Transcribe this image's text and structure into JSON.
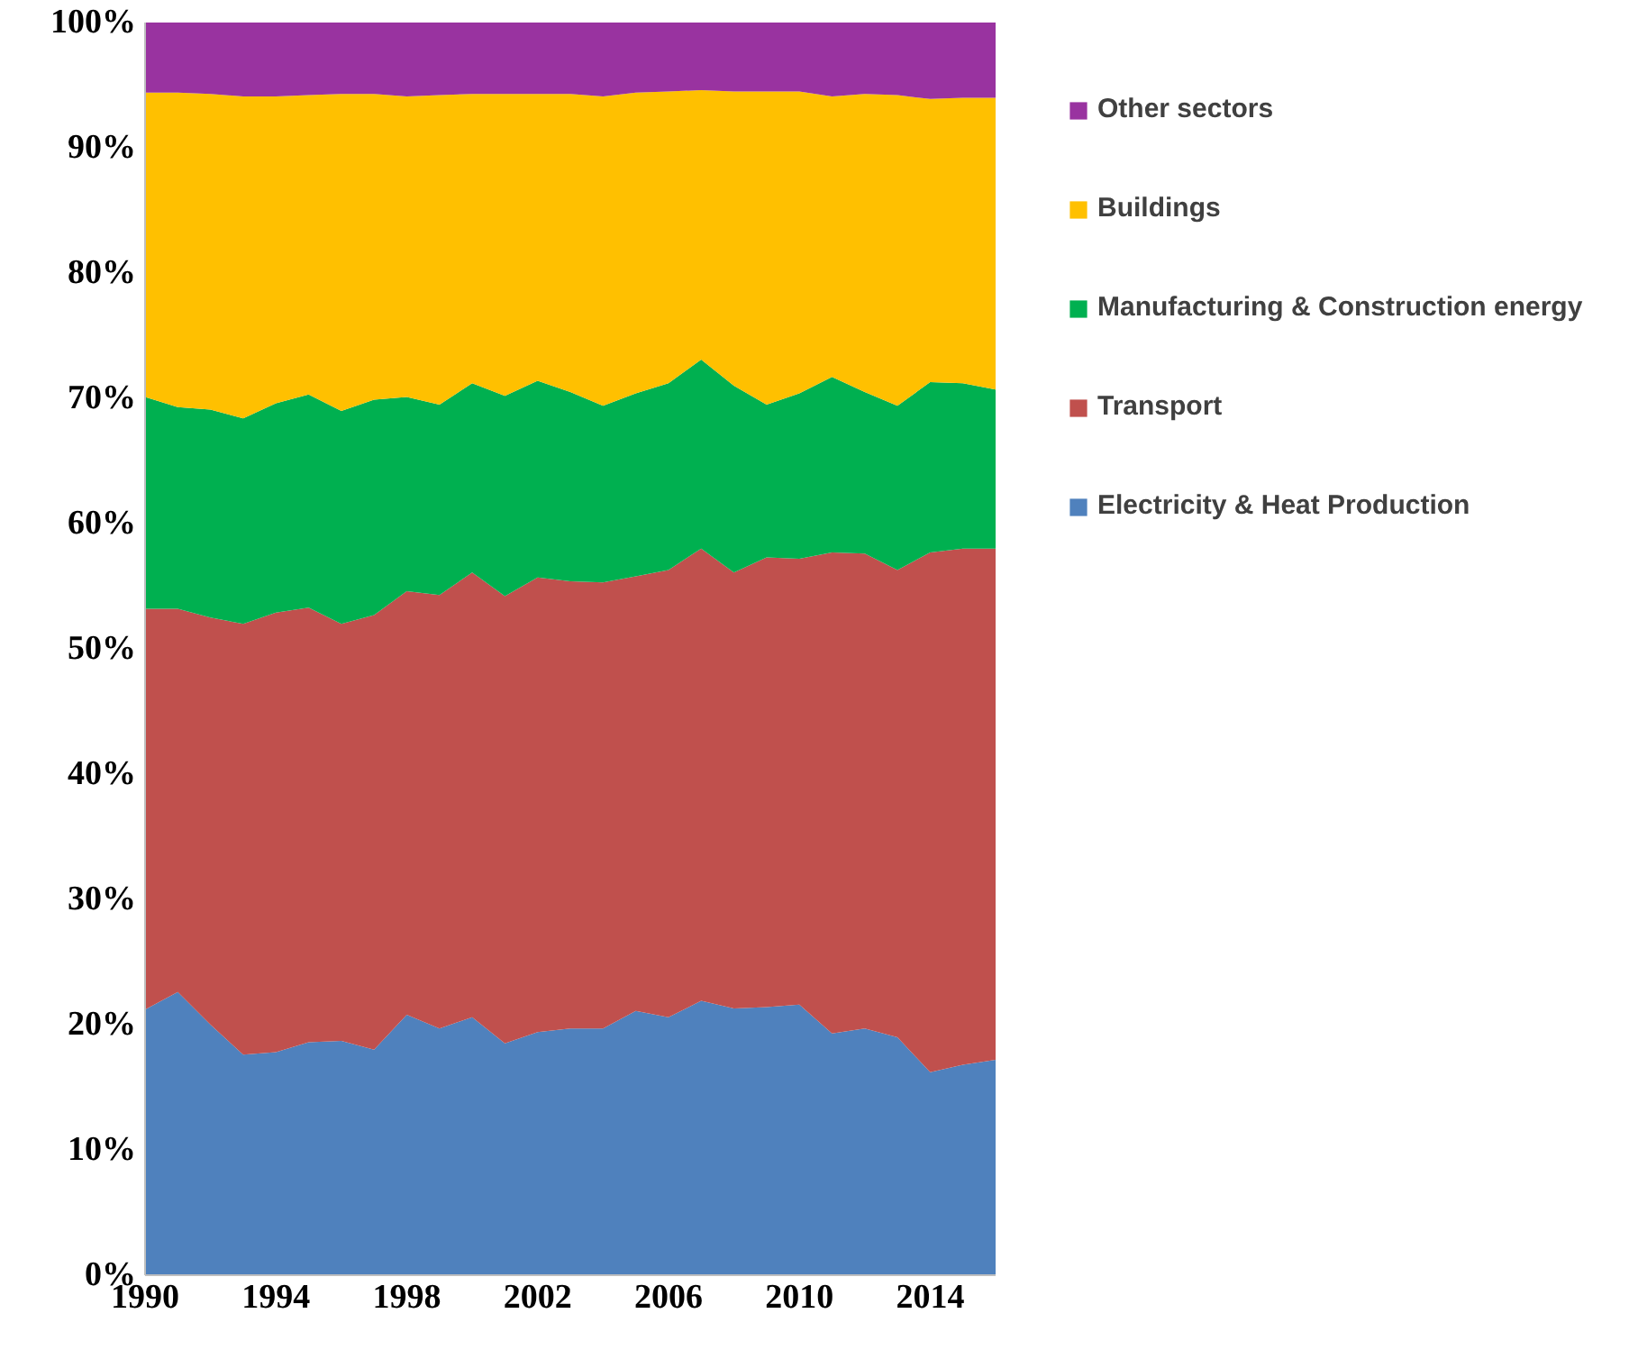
{
  "chart_data": {
    "type": "area",
    "stacked": true,
    "x": [
      1990,
      1991,
      1992,
      1993,
      1994,
      1995,
      1996,
      1997,
      1998,
      1999,
      2000,
      2001,
      2002,
      2003,
      2004,
      2005,
      2006,
      2007,
      2008,
      2009,
      2010,
      2011,
      2012,
      2013,
      2014,
      2015,
      2016
    ],
    "xlim": [
      1990,
      2016
    ],
    "xticks": [
      1990,
      1994,
      1998,
      2002,
      2006,
      2010,
      2014
    ],
    "ylim": [
      0,
      100
    ],
    "yticks": [
      {
        "value": 0,
        "label": "0%"
      },
      {
        "value": 10,
        "label": "10%"
      },
      {
        "value": 20,
        "label": "20%"
      },
      {
        "value": 30,
        "label": "30%"
      },
      {
        "value": 40,
        "label": "40%"
      },
      {
        "value": 50,
        "label": "50%"
      },
      {
        "value": 60,
        "label": "60%"
      },
      {
        "value": 70,
        "label": "70%"
      },
      {
        "value": 80,
        "label": "80%"
      },
      {
        "value": 90,
        "label": "90%"
      },
      {
        "value": 100,
        "label": "100%"
      }
    ],
    "grid": false,
    "legend": "right",
    "series": [
      {
        "name": "Electricity & Heat Production",
        "color": "#4f81bd",
        "values": [
          21.2,
          22.6,
          20.0,
          17.6,
          17.8,
          18.6,
          18.7,
          18.0,
          20.8,
          19.7,
          20.6,
          18.5,
          19.4,
          19.7,
          19.7,
          21.1,
          20.6,
          21.9,
          21.3,
          21.4,
          21.6,
          19.3,
          19.7,
          19.0,
          16.2,
          16.8,
          17.2
        ]
      },
      {
        "name": "Transport",
        "color": "#c0504d",
        "values": [
          32.0,
          30.6,
          32.5,
          34.4,
          35.1,
          34.7,
          33.3,
          34.7,
          33.8,
          34.6,
          35.5,
          35.7,
          36.3,
          35.7,
          35.6,
          34.7,
          35.7,
          36.1,
          34.8,
          35.9,
          35.6,
          38.4,
          37.9,
          37.3,
          41.5,
          41.2,
          40.8
        ]
      },
      {
        "name": "Manufacturing & Construction energy",
        "color": "#00b050",
        "values": [
          16.9,
          16.1,
          16.6,
          16.4,
          16.7,
          17.0,
          17.0,
          17.2,
          15.5,
          15.2,
          15.1,
          16.0,
          15.7,
          15.1,
          14.1,
          14.6,
          14.9,
          15.1,
          14.9,
          12.2,
          13.2,
          14.0,
          12.9,
          13.1,
          13.6,
          13.2,
          12.7
        ]
      },
      {
        "name": "Buildings",
        "color": "#ffc000",
        "values": [
          24.3,
          25.1,
          25.2,
          25.7,
          24.5,
          23.9,
          25.3,
          24.4,
          24.0,
          24.7,
          23.1,
          24.1,
          22.9,
          23.8,
          24.7,
          24.0,
          23.3,
          21.5,
          23.5,
          25.0,
          24.1,
          22.4,
          23.8,
          24.8,
          22.6,
          22.8,
          23.3
        ]
      },
      {
        "name": "Other sectors",
        "color": "#9933a0",
        "values": [
          5.6,
          5.6,
          5.7,
          5.9,
          5.9,
          5.8,
          5.7,
          5.7,
          5.9,
          5.8,
          5.7,
          5.7,
          5.7,
          5.7,
          5.9,
          5.6,
          5.5,
          5.4,
          5.5,
          5.5,
          5.5,
          5.9,
          5.7,
          5.8,
          6.1,
          6.0,
          6.0
        ]
      }
    ]
  }
}
